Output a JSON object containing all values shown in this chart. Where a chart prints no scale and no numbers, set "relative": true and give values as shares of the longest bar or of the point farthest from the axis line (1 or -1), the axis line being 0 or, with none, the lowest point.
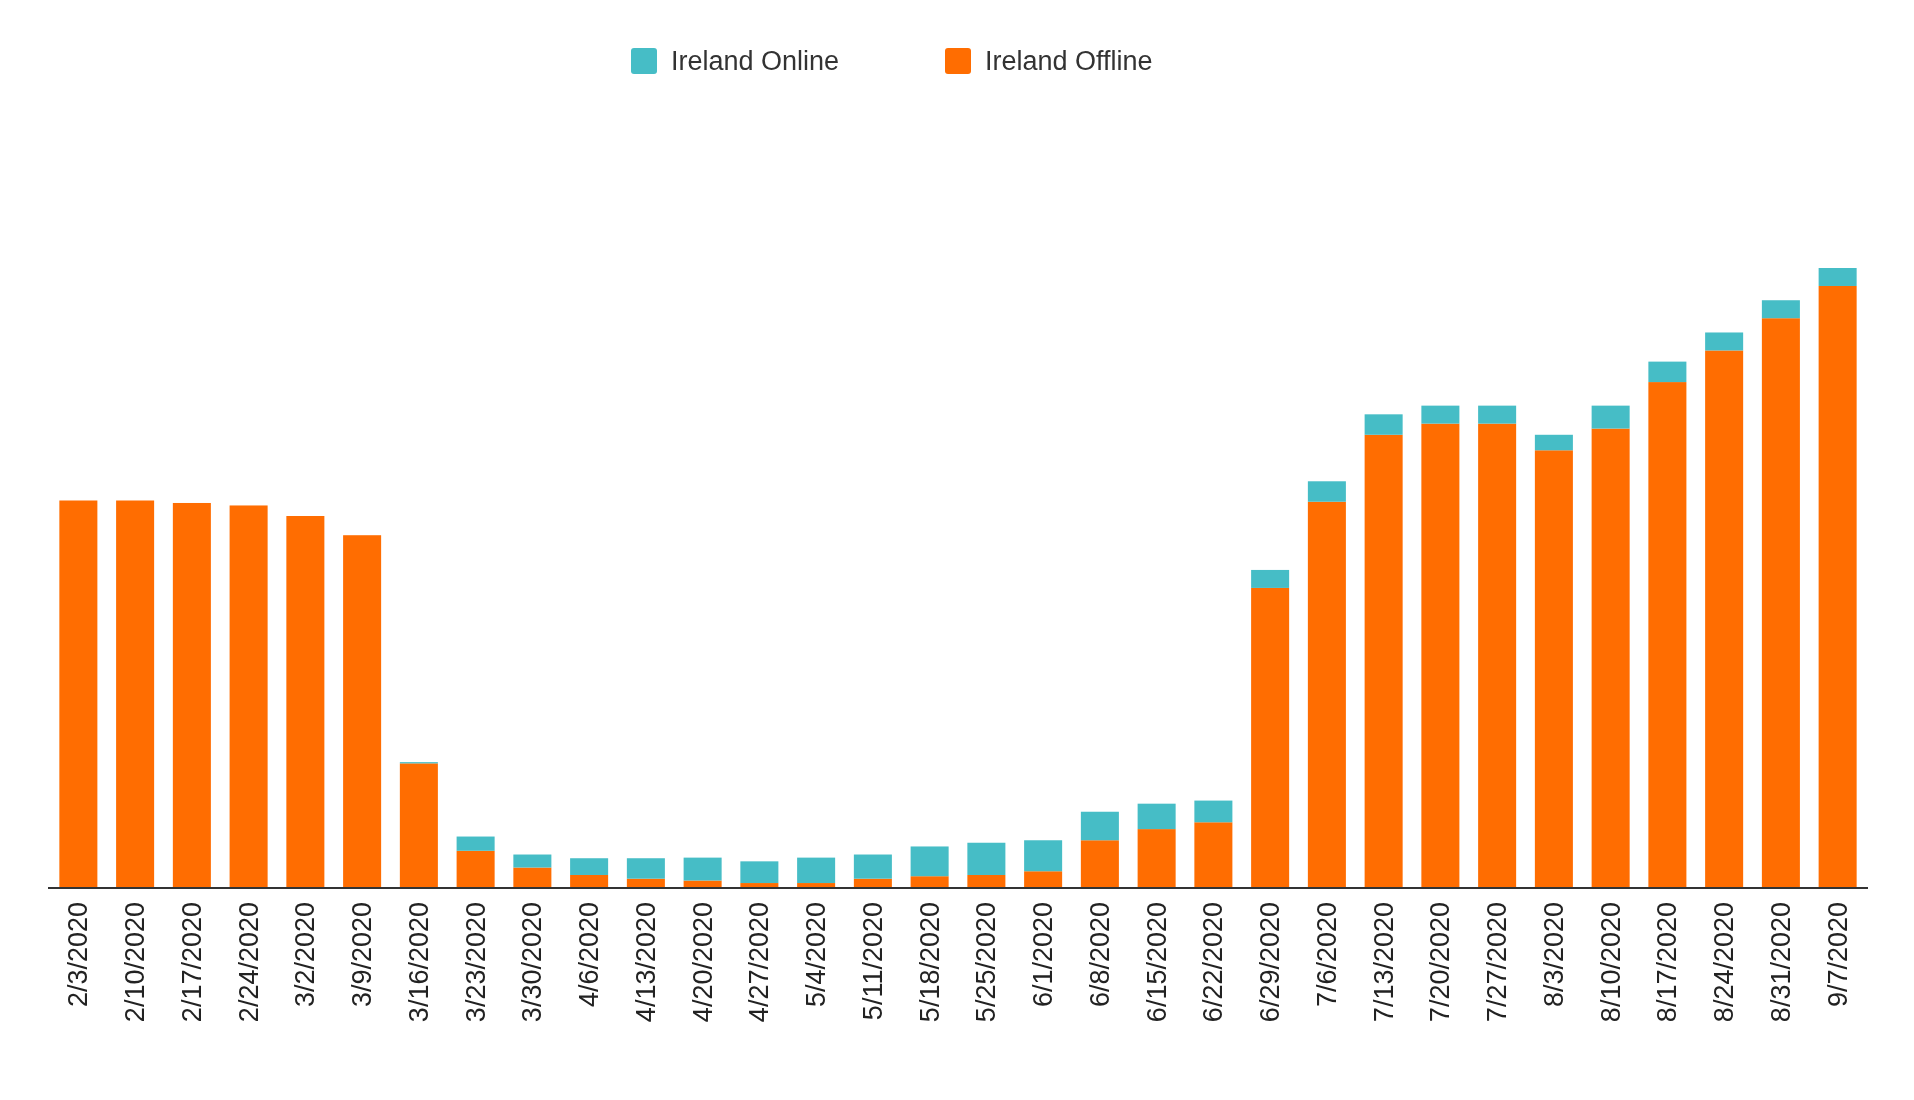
{
  "chart_data": {
    "type": "bar",
    "stacked": true,
    "relative": true,
    "legend": "top",
    "categories": [
      "2/3/2020",
      "2/10/2020",
      "2/17/2020",
      "2/24/2020",
      "3/2/2020",
      "3/9/2020",
      "3/16/2020",
      "3/23/2020",
      "3/30/2020",
      "4/6/2020",
      "4/13/2020",
      "4/20/2020",
      "4/27/2020",
      "5/4/2020",
      "5/11/2020",
      "5/18/2020",
      "5/25/2020",
      "6/1/2020",
      "6/8/2020",
      "6/15/2020",
      "6/22/2020",
      "6/29/2020",
      "7/6/2020",
      "7/13/2020",
      "7/20/2020",
      "7/27/2020",
      "8/3/2020",
      "8/10/2020",
      "8/17/2020",
      "8/24/2020",
      "8/31/2020",
      "9/7/2020"
    ],
    "series": [
      {
        "name": "Ireland Offline",
        "color": "#ff6d01",
        "values": [
          0.625,
          0.625,
          0.621,
          0.617,
          0.6,
          0.569,
          0.201,
          0.06,
          0.033,
          0.021,
          0.015,
          0.012,
          0.008,
          0.008,
          0.015,
          0.019,
          0.021,
          0.027,
          0.077,
          0.095,
          0.106,
          0.484,
          0.623,
          0.731,
          0.749,
          0.749,
          0.706,
          0.741,
          0.816,
          0.867,
          0.919,
          0.971
        ]
      },
      {
        "name": "Ireland Online",
        "color": "#46bdc6",
        "values": [
          0,
          0,
          0,
          0,
          0,
          0,
          0.002,
          0.023,
          0.021,
          0.027,
          0.033,
          0.037,
          0.035,
          0.041,
          0.039,
          0.048,
          0.052,
          0.05,
          0.046,
          0.041,
          0.035,
          0.029,
          0.033,
          0.033,
          0.029,
          0.029,
          0.025,
          0.037,
          0.033,
          0.029,
          0.029,
          0.029
        ]
      }
    ]
  }
}
